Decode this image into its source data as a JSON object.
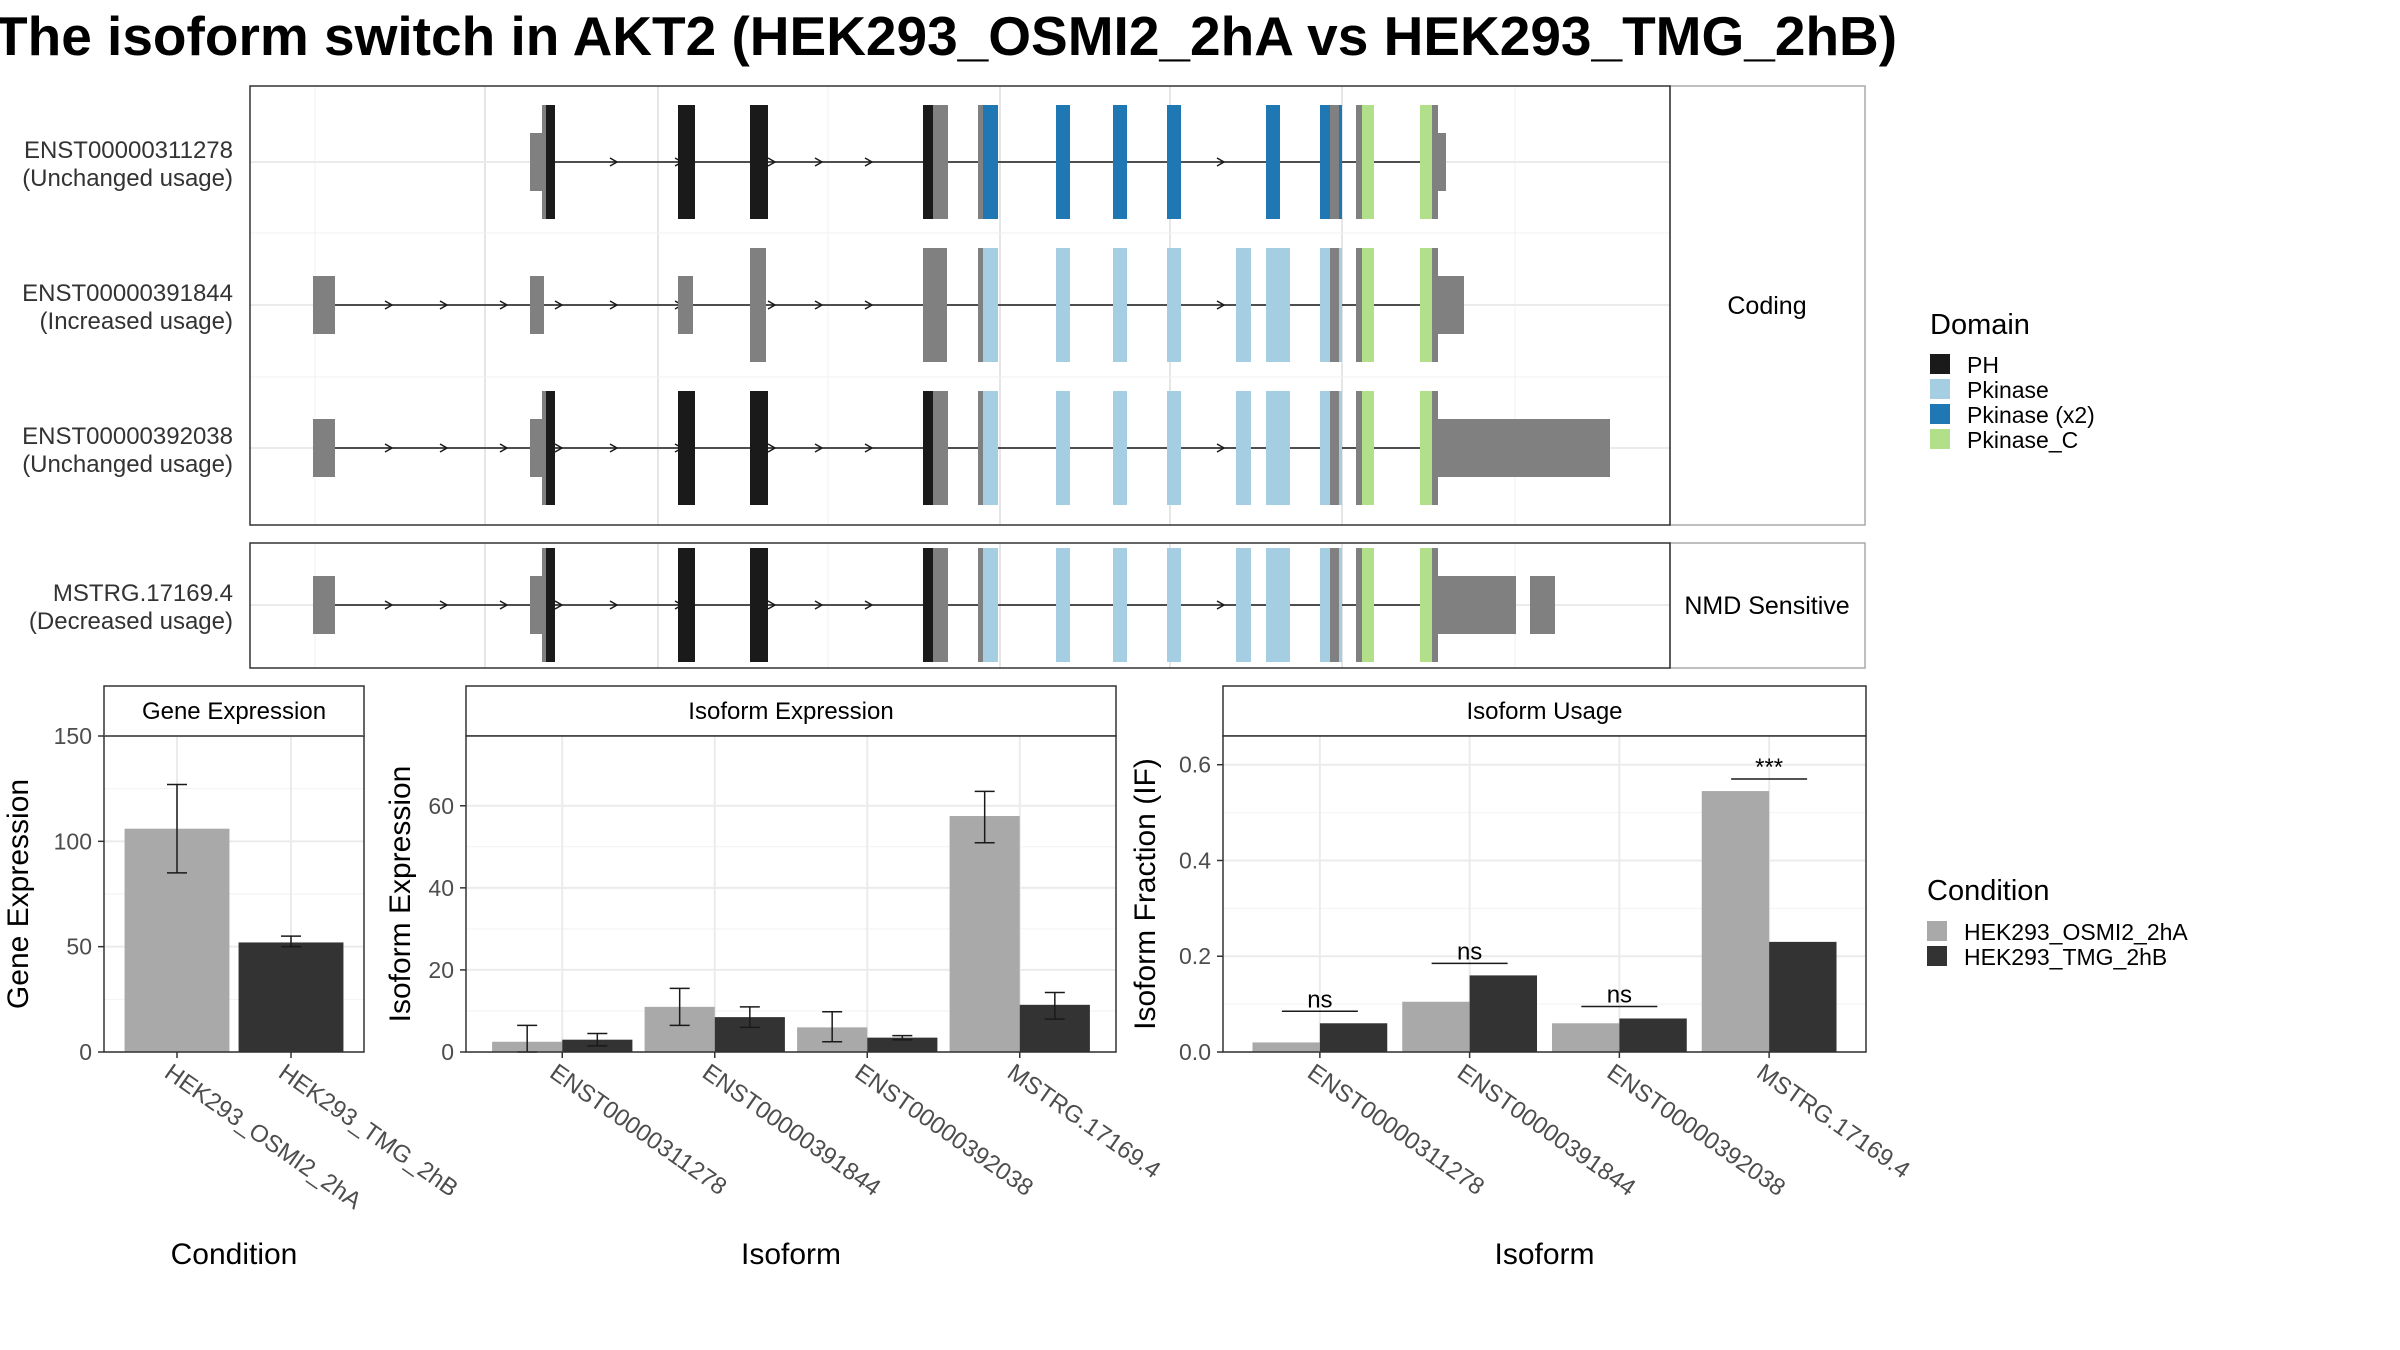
{
  "title": "The isoform switch in AKT2 (HEK293_OSMI2_2hA vs HEK293_TMG_2hB)",
  "colors": {
    "PH": "#1a1a1a",
    "Pkinase": "#a6cee3",
    "Pkinase (x2)": "#1f78b4",
    "Pkinase_C": "#b2df8a",
    "exon": "#808080",
    "cond_a": "#a9a9a9",
    "cond_b": "#333333"
  },
  "transcripts": {
    "facets": [
      "Coding",
      "NMD Sensitive"
    ],
    "items": [
      {
        "id": "ENST00000311278",
        "status": "(Unchanged usage)",
        "facet": "Coding",
        "track_start": 0.2,
        "domain_set": "x2"
      },
      {
        "id": "ENST00000391844",
        "status": "(Increased usage)",
        "facet": "Coding",
        "track_start": 0.045,
        "domain_set": "single"
      },
      {
        "id": "ENST00000392038",
        "status": "(Unchanged usage)",
        "facet": "Coding",
        "track_start": 0.045,
        "domain_set": "single"
      },
      {
        "id": "MSTRG.17169.4",
        "status": "(Decreased usage)",
        "facet": "NMD Sensitive",
        "track_start": 0.045,
        "domain_set": "single"
      }
    ]
  },
  "legend_domain": {
    "title": "Domain",
    "items": [
      "PH",
      "Pkinase",
      "Pkinase (x2)",
      "Pkinase_C"
    ]
  },
  "legend_condition": {
    "title": "Condition",
    "items": [
      "HEK293_OSMI2_2hA",
      "HEK293_TMG_2hB"
    ]
  },
  "chart_data": [
    {
      "type": "bar",
      "title": "Gene Expression",
      "xlabel": "Condition",
      "ylabel": "Gene Expression",
      "categories": [
        "HEK293_OSMI2_2hA",
        "HEK293_TMG_2hB"
      ],
      "values": [
        106,
        52
      ],
      "errors": [
        [
          85,
          127
        ],
        [
          50,
          55
        ]
      ],
      "ylim": [
        0,
        150
      ],
      "yticks": [
        0,
        50,
        100,
        150
      ],
      "grid": true
    },
    {
      "type": "bar",
      "title": "Isoform Expression",
      "xlabel": "Isoform",
      "ylabel": "Isoform Expression",
      "categories": [
        "ENST00000311278",
        "ENST00000391844",
        "ENST00000392038",
        "MSTRG.17169.4"
      ],
      "series": [
        {
          "name": "HEK293_OSMI2_2hA",
          "values": [
            2.5,
            11,
            6,
            57.5
          ],
          "errors": [
            [
              0,
              6.5
            ],
            [
              6.5,
              15.5
            ],
            [
              2.5,
              9.8
            ],
            [
              51,
              63.5
            ]
          ]
        },
        {
          "name": "HEK293_TMG_2hB",
          "values": [
            3,
            8.5,
            3.5,
            11.5
          ],
          "errors": [
            [
              1.5,
              4.5
            ],
            [
              6,
              11
            ],
            [
              3,
              4
            ],
            [
              8,
              14.5
            ]
          ]
        }
      ],
      "ylim": [
        0,
        77
      ],
      "yticks": [
        0,
        20,
        40,
        60
      ],
      "grid": true
    },
    {
      "type": "bar",
      "title": "Isoform Usage",
      "xlabel": "Isoform",
      "ylabel": "Isoform Fraction (IF)",
      "categories": [
        "ENST00000311278",
        "ENST00000391844",
        "ENST00000392038",
        "MSTRG.17169.4"
      ],
      "series": [
        {
          "name": "HEK293_OSMI2_2hA",
          "values": [
            0.02,
            0.105,
            0.06,
            0.545
          ]
        },
        {
          "name": "HEK293_TMG_2hB",
          "values": [
            0.06,
            0.16,
            0.07,
            0.23
          ]
        }
      ],
      "annotations": [
        "ns",
        "ns",
        "ns",
        "***"
      ],
      "ylim": [
        0,
        0.66
      ],
      "yticks": [
        "0.0",
        "0.2",
        "0.4",
        "0.6"
      ],
      "grid": true
    }
  ]
}
